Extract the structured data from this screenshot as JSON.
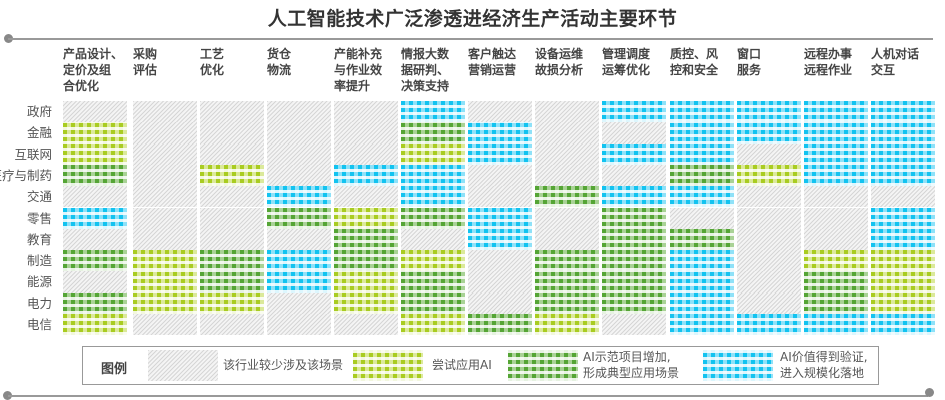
{
  "chart_data": {
    "type": "heatmap",
    "title": "人工智能技术广泛渗透进经济生产活动主要环节",
    "columns": [
      "产品设计、\n定价及组\n合优化",
      "采购\n评估",
      "工艺\n优化",
      "货仓\n物流",
      "产能补充\n与作业效\n率提升",
      "情报大数\n据研判、\n决策支持",
      "客户触达\n营销运营",
      "设备运维\n故损分析",
      "管理调度\n运筹优化",
      "质控、风\n控和安全",
      "窗口\n服务",
      "远程办事\n远程作业",
      "人机对话\n交互"
    ],
    "rows": [
      "政府",
      "金融",
      "互联网",
      "医疗与制药",
      "交通",
      "零售",
      "教育",
      "制造",
      "能源",
      "电力",
      "电信"
    ],
    "levels": [
      {
        "value": 0,
        "label": "该行业较少涉及该场景",
        "color": "#cccccc"
      },
      {
        "value": 1,
        "label": "尝试应用AI",
        "color": "#a9cc21"
      },
      {
        "value": 2,
        "label": "AI示范项目增加,\n形成典型应用场景",
        "color": "#55a535"
      },
      {
        "value": 3,
        "label": "AI价值得到验证,\n进入规模化落地",
        "color": "#12c3f0"
      }
    ],
    "values_by_column": [
      [
        0,
        1,
        1,
        2,
        0,
        3,
        0,
        2,
        0,
        2,
        1
      ],
      [
        0,
        0,
        0,
        0,
        0,
        0,
        0,
        1,
        1,
        1,
        0
      ],
      [
        0,
        0,
        0,
        1,
        0,
        0,
        0,
        2,
        2,
        1,
        0
      ],
      [
        0,
        0,
        0,
        0,
        3,
        2,
        0,
        3,
        3,
        0,
        0
      ],
      [
        0,
        0,
        0,
        3,
        0,
        1,
        2,
        2,
        1,
        1,
        0
      ],
      [
        3,
        2,
        1,
        3,
        3,
        2,
        0,
        1,
        2,
        2,
        1
      ],
      [
        0,
        3,
        3,
        0,
        0,
        3,
        3,
        0,
        0,
        0,
        2
      ],
      [
        0,
        0,
        0,
        0,
        2,
        0,
        0,
        2,
        2,
        2,
        1
      ],
      [
        3,
        0,
        3,
        0,
        3,
        2,
        2,
        2,
        2,
        2,
        0
      ],
      [
        3,
        3,
        3,
        2,
        3,
        0,
        2,
        3,
        3,
        3,
        3
      ],
      [
        3,
        3,
        0,
        1,
        0,
        0,
        0,
        0,
        0,
        0,
        3
      ],
      [
        3,
        3,
        3,
        3,
        0,
        0,
        0,
        1,
        2,
        2,
        3
      ],
      [
        3,
        3,
        3,
        3,
        0,
        3,
        3,
        1,
        1,
        1,
        3
      ]
    ],
    "legend_title": "图例",
    "legend_placement": "bottom"
  }
}
